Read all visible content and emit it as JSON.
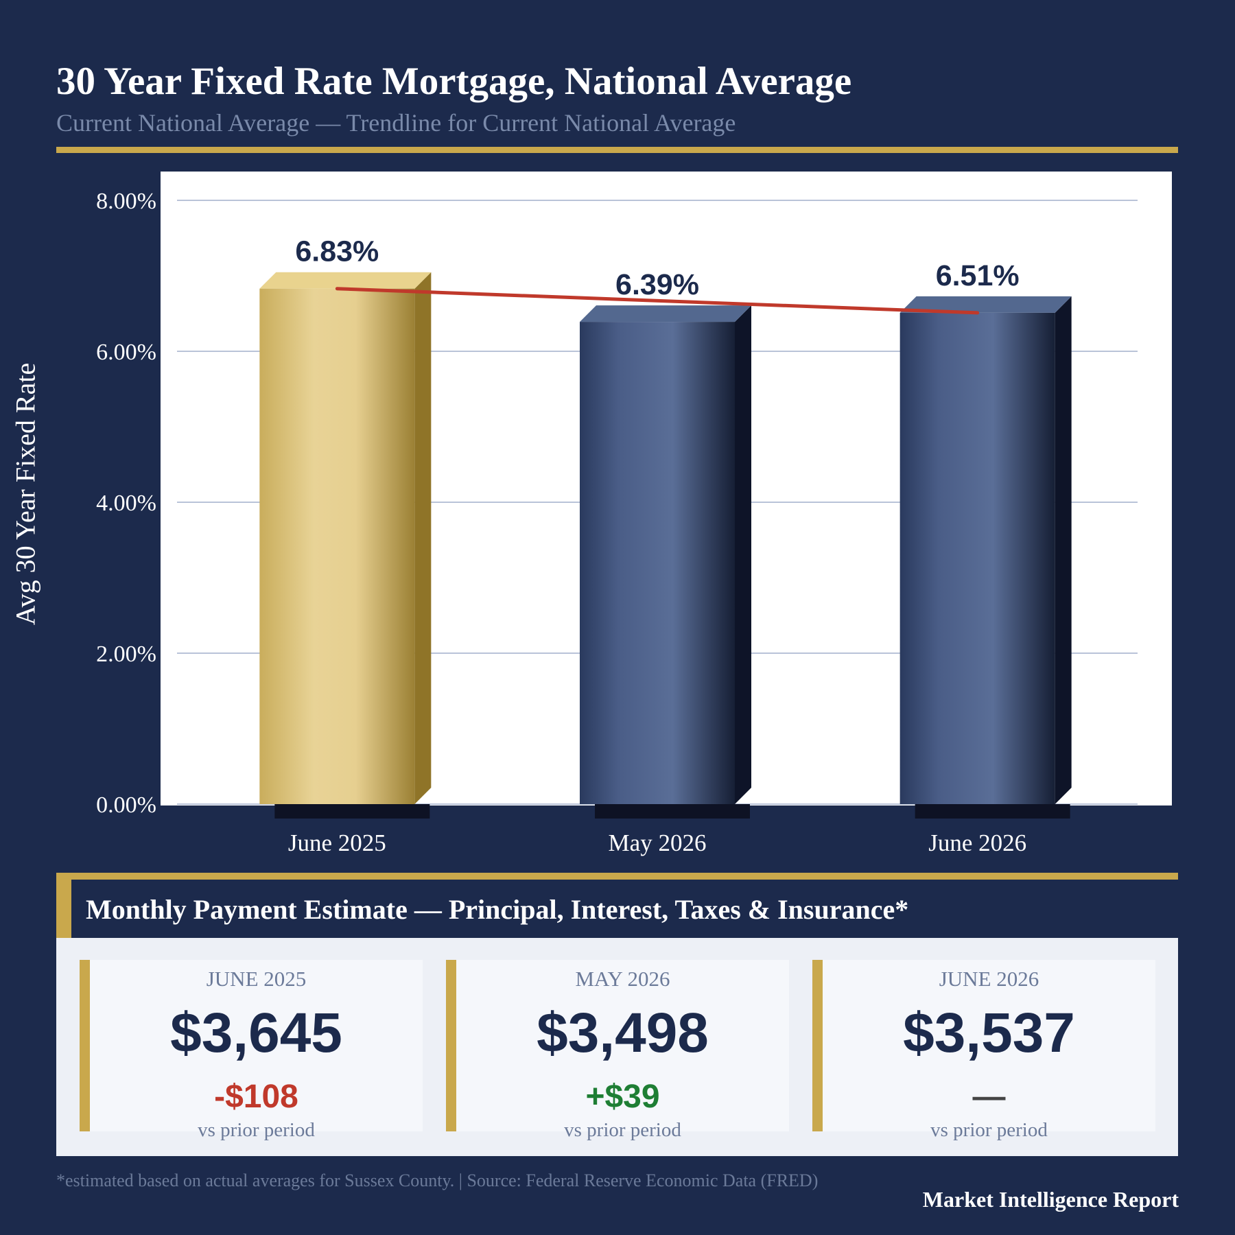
{
  "header": {
    "title": "30 Year Fixed Rate Mortgage, National Average",
    "subtitle": "Current National Average   —   Trendline for Current National Average"
  },
  "chart_data": {
    "type": "bar",
    "categories": [
      "June 2025",
      "May 2026",
      "June 2026"
    ],
    "values": [
      6.83,
      6.39,
      6.51
    ],
    "value_labels": [
      "6.83%",
      "6.39%",
      "6.51%"
    ],
    "trendline": {
      "start": 6.83,
      "end": 6.51
    },
    "ylabel": "Avg 30 Year Fixed Rate",
    "ylim": [
      0,
      8
    ],
    "yticks": [
      {
        "value": 0,
        "label": "0.00%"
      },
      {
        "value": 2,
        "label": "2.00%"
      },
      {
        "value": 4,
        "label": "4.00%"
      },
      {
        "value": 6,
        "label": "6.00%"
      },
      {
        "value": 8,
        "label": "8.00%"
      }
    ],
    "grid": true,
    "colors": {
      "highlight": "#c9a84c",
      "bars": "#566a93",
      "trendline": "#c0392b",
      "label": "#1c2a4c"
    }
  },
  "payments": {
    "title": "Monthly Payment Estimate — Principal, Interest, Taxes & Insurance*",
    "cards": [
      {
        "date": "JUNE 2025",
        "amount": "$3,645",
        "change": "-$108",
        "change_color": "#c0392b",
        "note": "vs prior period"
      },
      {
        "date": "MAY 2026",
        "amount": "$3,498",
        "change": "+$39",
        "change_color": "#1e7e34",
        "note": "vs prior period"
      },
      {
        "date": "JUNE 2026",
        "amount": "$3,537",
        "change": "—",
        "change_color": "#444444",
        "note": "vs prior period"
      }
    ]
  },
  "footer": {
    "note": "*estimated based on actual averages for Sussex County.  | Source: Federal Reserve Economic Data (FRED)",
    "brand": "Market Intelligence Report"
  }
}
